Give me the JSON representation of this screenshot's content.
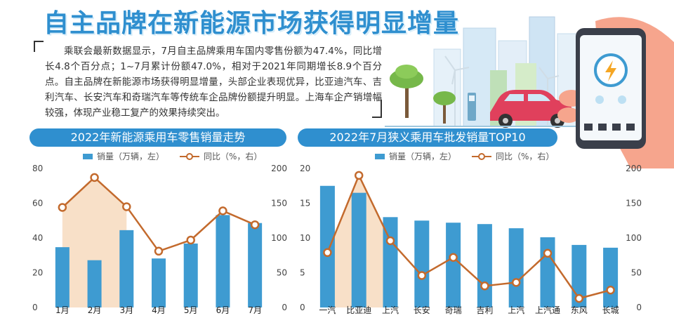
{
  "headline": "自主品牌在新能源市场获得明显增量",
  "intro": "乘联会最新数据显示，7月自主品牌乘用车国内零售份额为47.4%，同比增长4.8个百分点；1~7月累计份额47.0%，相对于2021年同期增长8.9个百分点。自主品牌在新能源市场获得明显增量，头部企业表现优异，比亚迪汽车、吉利汽车、长安汽车和奇瑞汽车等传统车企品牌份额提升明显。上海车企产销增幅较强，体现产业稳工复产的效果持续突出。",
  "colors": {
    "accent": "#2f8fcf",
    "bar": "#3e9bd1",
    "line": "#c36a2d",
    "area": "#f6d6b5"
  },
  "chart_data": [
    {
      "type": "bar",
      "title": "2022年新能源乘用车零售销量走势",
      "legend": {
        "bar": "销量（万辆，左）",
        "line": "同比（%，右）"
      },
      "categories": [
        "1月",
        "2月",
        "3月",
        "4月",
        "5月",
        "6月",
        "7月"
      ],
      "series": [
        {
          "name": "销量（万辆，左）",
          "axis": "left",
          "type": "bar",
          "values": [
            34.7,
            27.2,
            44.5,
            28.2,
            36.8,
            53.2,
            48.6
          ]
        },
        {
          "name": "同比（%，右）",
          "axis": "right",
          "type": "line",
          "values": [
            144,
            187,
            145,
            81,
            97,
            139,
            119
          ]
        }
      ],
      "ylim_left": [
        0,
        80
      ],
      "yticks_left": [
        0,
        20,
        40,
        60,
        80
      ],
      "ylim_right": [
        0,
        200
      ],
      "yticks_right": [
        0,
        50,
        100,
        150,
        200
      ],
      "shaded_range": [
        "1月",
        "3月"
      ]
    },
    {
      "type": "bar",
      "title": "2022年7月狭义乘用车批发销量TOP10",
      "legend": {
        "bar": "销量（万辆，左）",
        "line": "同比（%，右）"
      },
      "categories": [
        "一汽大众",
        "比亚迪汽车",
        "上汽大众",
        "长安汽车",
        "奇瑞汽车",
        "吉利汽车",
        "上汽通用",
        "上汽通用五菱",
        "东风日产",
        "长城汽车"
      ],
      "categories_visible": [
        "一汽",
        "比亚迪",
        "上汽",
        "长安",
        "奇瑞",
        "吉利",
        "上汽",
        "上汽通",
        "东风",
        "长城"
      ],
      "series": [
        {
          "name": "销量（万辆，左）",
          "axis": "left",
          "type": "bar",
          "values": [
            17.5,
            16.5,
            13.0,
            12.5,
            12.2,
            12.0,
            11.4,
            10.1,
            9.0,
            8.6
          ]
        },
        {
          "name": "同比（%，右）",
          "axis": "right",
          "type": "line",
          "values": [
            79,
            190,
            96,
            46,
            72,
            31,
            36,
            78,
            13,
            25
          ]
        }
      ],
      "ylim_left": [
        0,
        20
      ],
      "yticks_left": [
        0,
        5,
        10,
        15,
        20
      ],
      "ylim_right": [
        0,
        200
      ],
      "yticks_right": [
        0,
        50,
        100,
        150,
        200
      ],
      "shaded_range": [
        "一汽大众",
        "上汽大众"
      ]
    }
  ]
}
